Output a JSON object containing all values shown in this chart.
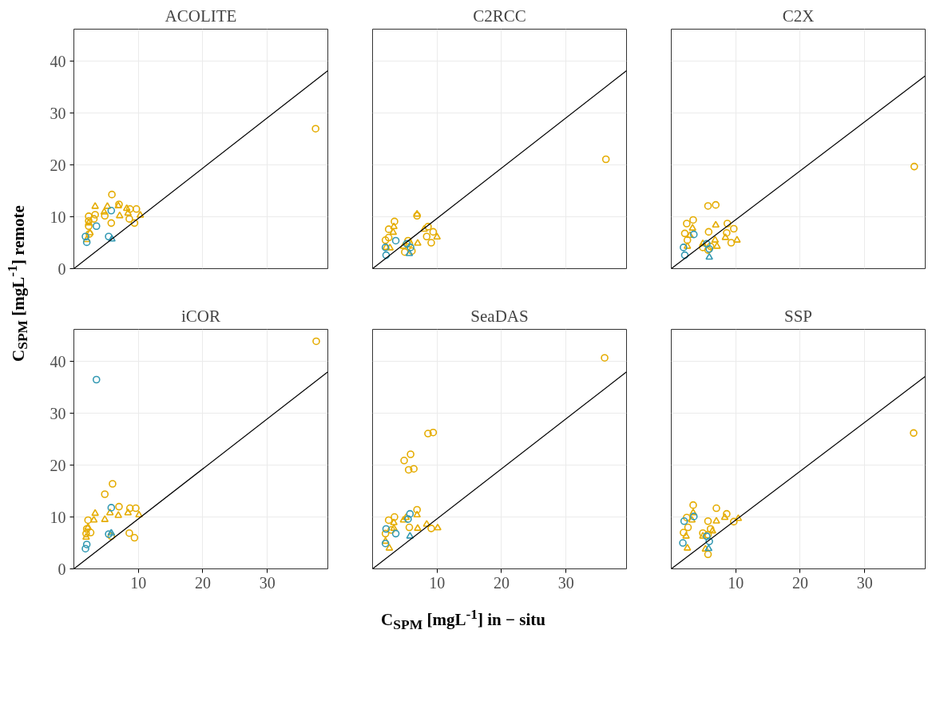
{
  "chart_data": [
    {
      "type": "scatter",
      "title": "ACOLITE",
      "ylabel": "C$_{SPM}$ [mgL$^{-1}$] remote",
      "xlim": [
        0,
        39.4
      ],
      "ylim": [
        0,
        46.2
      ],
      "xticks": [
        10,
        20,
        30
      ],
      "yticks": [
        0,
        10,
        20,
        30,
        40
      ],
      "grid": true,
      "tick_labels": "y",
      "series": [
        {
          "color": "#e5ac00",
          "marker": "circle",
          "x": [
            5.9,
            7.0,
            8.7,
            9.7,
            2.3,
            3.3,
            4.8,
            3.1,
            2.3,
            2.3,
            5.8,
            8.6,
            9.4,
            2.4,
            37.5
          ],
          "values": [
            14.3,
            12.4,
            11.5,
            11.5,
            10.1,
            10.4,
            10.2,
            9.6,
            9.2,
            8.2,
            8.8,
            9.6,
            8.8,
            6.7,
            27.0
          ]
        },
        {
          "color": "#e5ac00",
          "marker": "triangle",
          "x": [
            3.3,
            5.2,
            6.9,
            4.7,
            8.2,
            7.1,
            8.4,
            10.3,
            2.3,
            2.5,
            2.0
          ],
          "values": [
            12.0,
            12.0,
            12.1,
            10.9,
            11.6,
            10.2,
            10.7,
            10.3,
            8.8,
            6.9,
            5.6
          ]
        },
        {
          "color": "#3399b3",
          "marker": "circle",
          "x": [
            5.8,
            3.5,
            1.8,
            2.0,
            5.4
          ],
          "values": [
            11.2,
            8.2,
            6.2,
            5.1,
            6.2
          ]
        },
        {
          "color": "#3399b3",
          "marker": "triangle",
          "x": [
            5.9
          ],
          "values": [
            5.7
          ]
        },
        {
          "type": "line",
          "color": "#000000",
          "x": [
            0,
            39.4
          ],
          "values": [
            0,
            38.2
          ]
        }
      ]
    },
    {
      "type": "scatter",
      "title": "C2RCC",
      "xlim": [
        0,
        39.4
      ],
      "ylim": [
        0,
        46.2
      ],
      "xticks": [
        10,
        20,
        30
      ],
      "yticks": [
        0,
        10,
        20,
        30,
        40
      ],
      "grid": true,
      "tick_labels": false,
      "series": [
        {
          "color": "#e5ac00",
          "marker": "circle",
          "x": [
            6.9,
            3.4,
            2.5,
            8.6,
            9.4,
            8.4,
            9.1,
            2.0,
            2.5,
            5.5,
            5.0,
            6.1,
            5.7,
            36.2
          ],
          "values": [
            10.2,
            9.1,
            7.6,
            8.1,
            7.1,
            6.2,
            5.0,
            5.5,
            6.0,
            5.4,
            3.2,
            3.4,
            4.8,
            21.1
          ]
        },
        {
          "color": "#e5ac00",
          "marker": "triangle",
          "x": [
            6.9,
            3.3,
            3.2,
            8.0,
            10.0,
            7.0,
            4.8,
            2.1,
            2.7
          ],
          "values": [
            10.5,
            8.1,
            7.0,
            7.6,
            6.1,
            4.9,
            4.3,
            4.1,
            4.0
          ]
        },
        {
          "color": "#3399b3",
          "marker": "circle",
          "x": [
            3.6,
            2.0,
            2.1,
            5.3,
            5.9
          ],
          "values": [
            5.4,
            4.1,
            2.6,
            4.8,
            4.1
          ]
        },
        {
          "color": "#3399b3",
          "marker": "triangle",
          "x": [
            5.7
          ],
          "values": [
            2.9
          ]
        },
        {
          "type": "line",
          "color": "#000000",
          "x": [
            0,
            39.4
          ],
          "values": [
            0,
            38.2
          ]
        }
      ]
    },
    {
      "type": "scatter",
      "title": "C2X",
      "xlim": [
        0,
        39.4
      ],
      "ylim": [
        0,
        46.2
      ],
      "xticks": [
        10,
        20,
        30
      ],
      "yticks": [
        0,
        10,
        20,
        30,
        40
      ],
      "grid": true,
      "tick_labels": false,
      "series": [
        {
          "color": "#e5ac00",
          "marker": "circle",
          "x": [
            5.7,
            6.9,
            2.4,
            3.4,
            2.1,
            2.5,
            5.8,
            8.7,
            9.7,
            8.6,
            9.3,
            4.9,
            5.7,
            6.1,
            37.7
          ],
          "values": [
            12.1,
            12.3,
            8.7,
            9.4,
            6.8,
            5.5,
            7.1,
            8.7,
            7.7,
            6.9,
            5.0,
            4.1,
            3.6,
            4.3,
            19.7
          ]
        },
        {
          "color": "#e5ac00",
          "marker": "triangle",
          "x": [
            3.3,
            2.9,
            2.5,
            6.9,
            6.8,
            8.4,
            10.2,
            4.9,
            7.1
          ],
          "values": [
            7.8,
            6.4,
            4.3,
            8.4,
            5.5,
            6.0,
            5.5,
            4.8,
            4.3
          ]
        },
        {
          "color": "#3399b3",
          "marker": "circle",
          "x": [
            3.5,
            1.9,
            2.1,
            5.5,
            5.9
          ],
          "values": [
            6.6,
            4.1,
            2.6,
            4.8,
            3.8
          ]
        },
        {
          "color": "#3399b3",
          "marker": "triangle",
          "x": [
            5.9
          ],
          "values": [
            2.2
          ]
        },
        {
          "type": "line",
          "color": "#000000",
          "x": [
            0,
            39.4
          ],
          "values": [
            0,
            37.2
          ]
        }
      ]
    },
    {
      "type": "scatter",
      "title": "iCOR",
      "xlim": [
        0,
        39.4
      ],
      "ylim": [
        0,
        46.2
      ],
      "xticks": [
        10,
        20,
        30
      ],
      "yticks": [
        0,
        10,
        20,
        30,
        40
      ],
      "grid": true,
      "series": [
        {
          "color": "#e5ac00",
          "marker": "circle",
          "x": [
            6.0,
            4.8,
            7.0,
            8.7,
            9.6,
            2.2,
            2.0,
            1.9,
            2.6,
            5.8,
            8.6,
            9.4,
            37.6
          ],
          "values": [
            16.4,
            14.4,
            12.0,
            11.7,
            11.7,
            9.4,
            7.7,
            6.8,
            7.0,
            6.3,
            6.9,
            6.0,
            43.9
          ]
        },
        {
          "color": "#e5ac00",
          "marker": "triangle",
          "x": [
            3.3,
            3.1,
            4.8,
            5.6,
            6.9,
            8.4,
            10.1,
            2.2,
            1.9
          ],
          "values": [
            10.7,
            9.4,
            9.5,
            10.8,
            10.3,
            10.8,
            10.4,
            8.0,
            6.1
          ]
        },
        {
          "color": "#3399b3",
          "marker": "circle",
          "x": [
            3.5,
            5.8,
            5.4,
            2.0,
            1.8
          ],
          "values": [
            36.5,
            11.8,
            6.7,
            4.7,
            3.9
          ]
        },
        {
          "color": "#3399b3",
          "marker": "triangle",
          "x": [
            5.8
          ],
          "values": [
            6.9
          ]
        },
        {
          "type": "line",
          "color": "#000000",
          "x": [
            0,
            39.4
          ],
          "values": [
            0,
            38.0
          ]
        }
      ]
    },
    {
      "type": "scatter",
      "title": "SeaDAS",
      "xlabel": "C$_{SPM}$ [mgL$^{-1}$] in − situ",
      "xlim": [
        0,
        39.4
      ],
      "ylim": [
        0,
        46.2
      ],
      "xticks": [
        10,
        20,
        30
      ],
      "yticks": [
        0,
        10,
        20,
        30,
        40
      ],
      "grid": true,
      "tick_labels": "x",
      "series": [
        {
          "color": "#e5ac00",
          "marker": "circle",
          "x": [
            8.6,
            9.4,
            4.9,
            5.9,
            5.6,
            6.4,
            6.9,
            3.4,
            2.5,
            2.0,
            2.9,
            5.7,
            9.1,
            36.0
          ],
          "values": [
            26.1,
            26.3,
            20.9,
            22.1,
            19.1,
            19.3,
            11.4,
            10.0,
            9.4,
            6.8,
            7.5,
            8.0,
            7.8,
            40.7
          ]
        },
        {
          "color": "#e5ac00",
          "marker": "triangle",
          "x": [
            3.3,
            4.8,
            6.9,
            5.2,
            3.3,
            7.0,
            8.4,
            10.1,
            2.0,
            2.6
          ],
          "values": [
            8.9,
            9.4,
            10.4,
            9.9,
            7.8,
            7.8,
            8.6,
            7.9,
            5.3,
            4.0
          ]
        },
        {
          "color": "#3399b3",
          "marker": "circle",
          "x": [
            5.8,
            5.5,
            2.1,
            3.6,
            2.0
          ],
          "values": [
            10.6,
            9.6,
            7.7,
            6.8,
            4.9
          ]
        },
        {
          "color": "#3399b3",
          "marker": "triangle",
          "x": [
            5.8
          ],
          "values": [
            6.3
          ]
        },
        {
          "type": "line",
          "color": "#000000",
          "x": [
            0,
            39.4
          ],
          "values": [
            0,
            38.0
          ]
        }
      ]
    },
    {
      "type": "scatter",
      "title": "SSP",
      "xlim": [
        0,
        39.4
      ],
      "ylim": [
        0,
        46.2
      ],
      "xticks": [
        10,
        20,
        30
      ],
      "yticks": [
        0,
        10,
        20,
        30,
        40
      ],
      "grid": true,
      "tick_labels": "x",
      "series": [
        {
          "color": "#e5ac00",
          "marker": "circle",
          "x": [
            3.4,
            2.4,
            2.6,
            1.9,
            5.7,
            6.1,
            4.9,
            5.7,
            7.0,
            8.6,
            9.7,
            5.7,
            37.6
          ],
          "values": [
            12.3,
            9.9,
            8.0,
            7.0,
            9.2,
            7.7,
            6.9,
            6.6,
            11.7,
            10.6,
            9.1,
            2.8,
            26.2
          ]
        },
        {
          "color": "#e5ac00",
          "marker": "triangle",
          "x": [
            3.4,
            3.2,
            2.3,
            2.5,
            7.0,
            8.3,
            10.4,
            4.9,
            6.4,
            5.3
          ],
          "values": [
            10.8,
            9.4,
            6.3,
            4.0,
            9.2,
            9.9,
            9.7,
            6.3,
            7.3,
            3.8
          ]
        },
        {
          "color": "#3399b3",
          "marker": "circle",
          "x": [
            3.5,
            2.0,
            1.8,
            5.5,
            5.9
          ],
          "values": [
            10.1,
            9.2,
            5.0,
            6.3,
            5.3
          ]
        },
        {
          "color": "#3399b3",
          "marker": "triangle",
          "x": [
            5.8
          ],
          "values": [
            3.9
          ]
        },
        {
          "type": "line",
          "color": "#000000",
          "x": [
            0,
            39.4
          ],
          "values": [
            0,
            37.1
          ]
        }
      ]
    }
  ]
}
